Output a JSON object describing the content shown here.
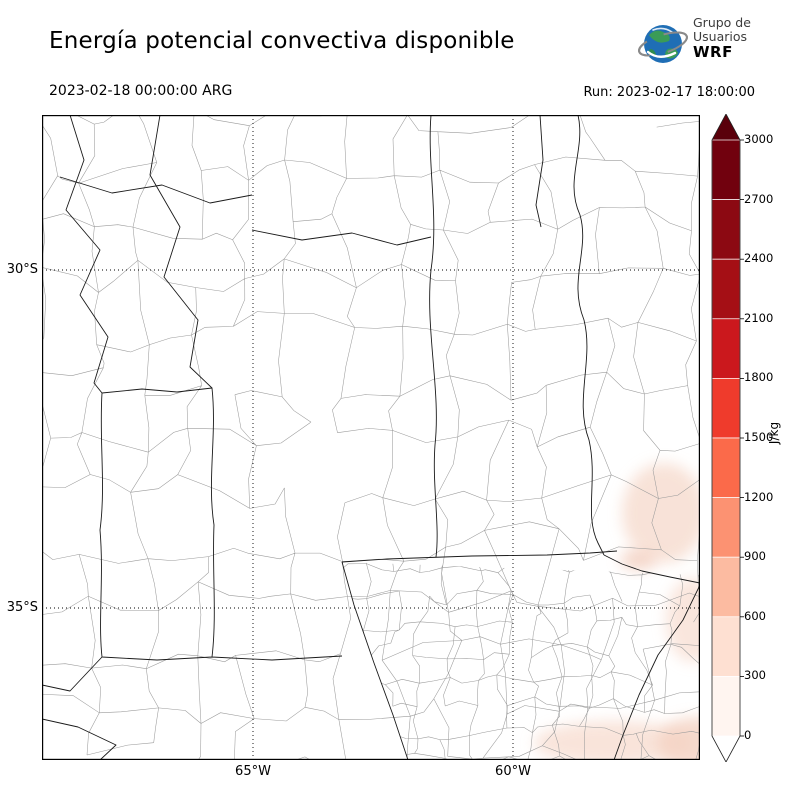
{
  "header": {
    "title": "Energía potencial convectiva disponible",
    "logo": {
      "line1": "Grupo de",
      "line2": "Usuarios",
      "line3": "WRF"
    }
  },
  "subheader": {
    "valid_time": "2023-02-18 00:00:00 ARG",
    "run": "Run: 2023-02-17 18:00:00"
  },
  "map": {
    "lat_ticks": [
      "30°S",
      "35°S"
    ],
    "lon_ticks": [
      "65°W",
      "60°W"
    ]
  },
  "colorbar": {
    "unit": "J/kg",
    "ticks_top_to_bottom": [
      "3000",
      "2700",
      "2400",
      "2100",
      "1800",
      "1500",
      "1200",
      "900",
      "600",
      "300",
      "0"
    ],
    "segment_colors_top_to_bottom": [
      "#71010e",
      "#8c0912",
      "#a50f15",
      "#cb181d",
      "#ef3b2c",
      "#fb6a4a",
      "#fc9272",
      "#fcbba1",
      "#fee0d2",
      "#fff5f0"
    ],
    "over_color": "#5a000b",
    "under_color": "#ffffff"
  },
  "chart_data": {
    "type": "heatmap",
    "title": "Energía potencial convectiva disponible",
    "valid_time": "2023-02-18 00:00:00 ARG",
    "run_time": "Run: 2023-02-17 18:00:00",
    "colorbar_unit": "J/kg",
    "colorbar_ticks": [
      0,
      300,
      600,
      900,
      1200,
      1500,
      1800,
      2100,
      2400,
      2700,
      3000
    ],
    "lat_gridlines": [
      "30°S",
      "35°S"
    ],
    "lon_gridlines": [
      "65°W",
      "60°W"
    ],
    "field_note": "CAPE ~0 over most of the domain; faint 0-300 J/kg shading near the Río de la Plata estuary, the southeast coast and the bottom edge of the map"
  }
}
